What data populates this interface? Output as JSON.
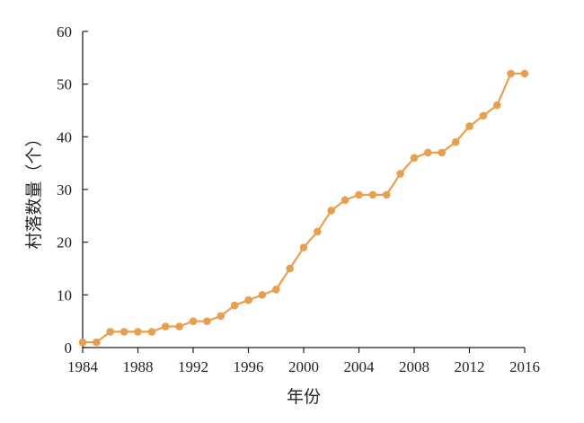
{
  "chart_data": {
    "type": "line",
    "xlabel": "年份",
    "ylabel": "村落数量（个）",
    "xlim": [
      1984,
      2016
    ],
    "ylim": [
      0,
      60
    ],
    "x_ticks": [
      1984,
      1988,
      1992,
      1996,
      2000,
      2004,
      2008,
      2012,
      2016
    ],
    "y_ticks": [
      0,
      10,
      20,
      30,
      40,
      50,
      60
    ],
    "grid": false,
    "legend": "none",
    "series": [
      {
        "color": "#E8A04E",
        "x": [
          1984,
          1985,
          1986,
          1987,
          1988,
          1989,
          1990,
          1991,
          1992,
          1993,
          1994,
          1995,
          1996,
          1997,
          1998,
          1999,
          2000,
          2001,
          2002,
          2003,
          2004,
          2005,
          2006,
          2007,
          2008,
          2009,
          2010,
          2011,
          2012,
          2013,
          2014,
          2015,
          2016
        ],
        "values": [
          1,
          1,
          3,
          3,
          3,
          3,
          4,
          4,
          5,
          5,
          6,
          8,
          9,
          10,
          11,
          15,
          19,
          22,
          26,
          28,
          29,
          29,
          29,
          33,
          36,
          37,
          37,
          39,
          42,
          44,
          46,
          52,
          52
        ]
      }
    ]
  }
}
